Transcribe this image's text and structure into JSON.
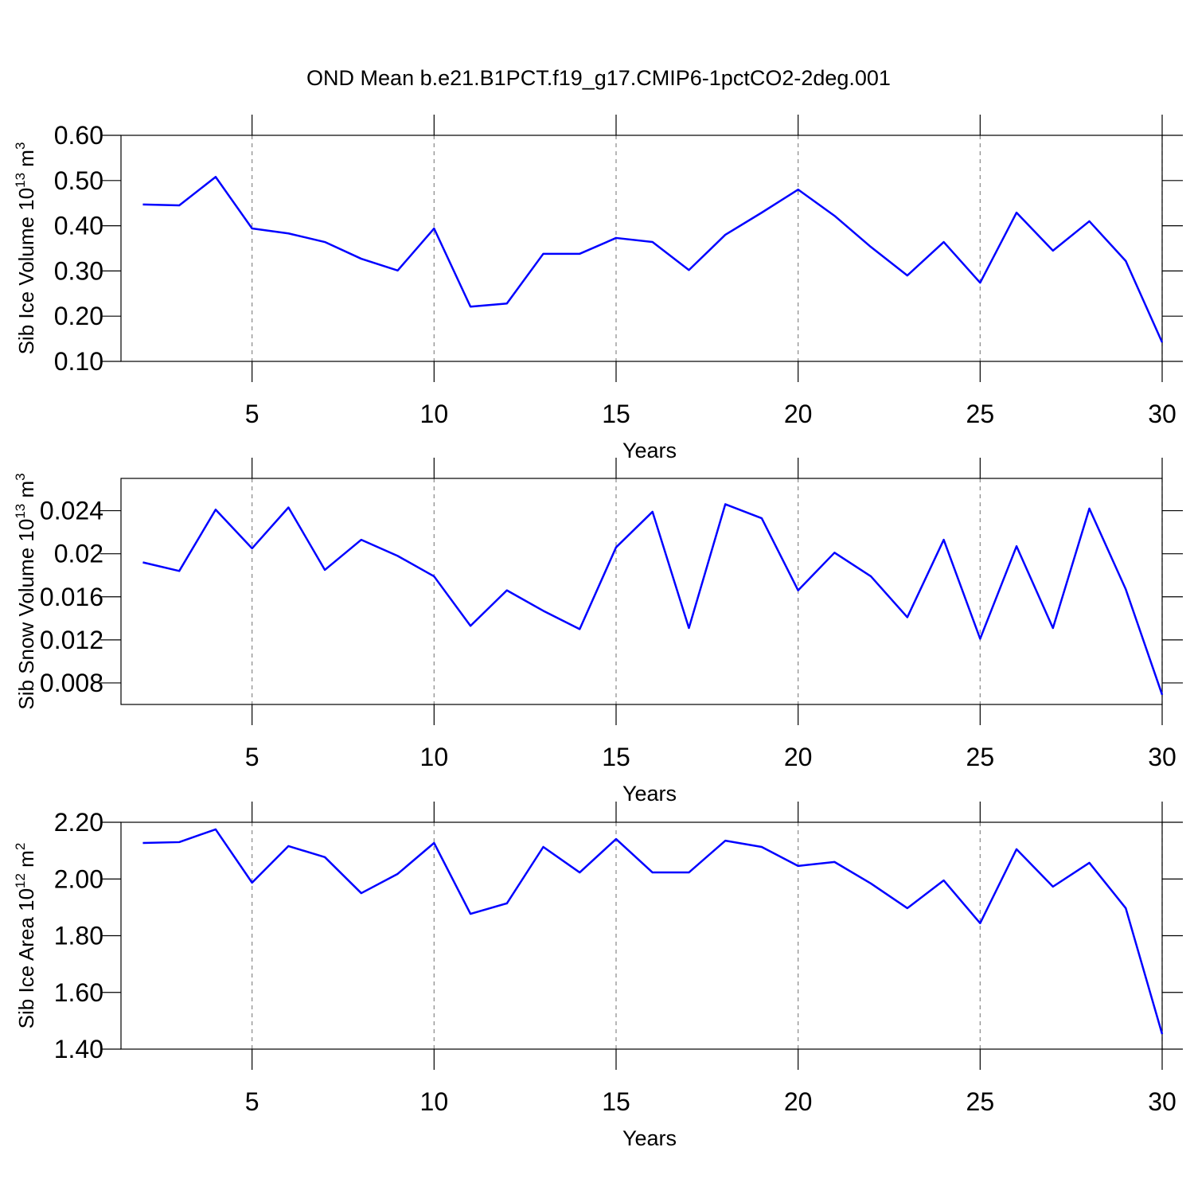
{
  "chart_data": [
    {
      "type": "line",
      "title": "OND Mean b.e21.B1PCT.f19_g17.CMIP6-1pctCO2-2deg.001",
      "xlabel": "Years",
      "ylabel": {
        "text": "Sib Ice Volume 10",
        "exponent": "13",
        "unit": " m",
        "unit_exponent": "3"
      },
      "x": [
        2,
        3,
        4,
        5,
        6,
        7,
        8,
        9,
        10,
        11,
        12,
        13,
        14,
        15,
        16,
        17,
        18,
        19,
        20,
        21,
        22,
        23,
        24,
        25,
        26,
        27,
        28,
        29,
        30
      ],
      "values": [
        0.447,
        0.445,
        0.508,
        0.394,
        0.383,
        0.364,
        0.327,
        0.301,
        0.394,
        0.221,
        0.228,
        0.338,
        0.338,
        0.373,
        0.364,
        0.302,
        0.38,
        0.429,
        0.48,
        0.422,
        0.353,
        0.29,
        0.364,
        0.274,
        0.429,
        0.345,
        0.41,
        0.322,
        0.142
      ],
      "color": "#0000ff",
      "xlim": [
        1.4,
        30
      ],
      "xticks": [
        5,
        10,
        15,
        20,
        25,
        30
      ],
      "ylim": [
        0.1,
        0.6
      ],
      "yticks": [
        {
          "value": 0.1,
          "label": "0.10"
        },
        {
          "value": 0.2,
          "label": "0.20"
        },
        {
          "value": 0.3,
          "label": "0.30"
        },
        {
          "value": 0.4,
          "label": "0.40"
        },
        {
          "value": 0.5,
          "label": "0.50"
        },
        {
          "value": 0.6,
          "label": "0.60"
        }
      ],
      "xgrid": true
    },
    {
      "type": "line",
      "xlabel": "Years",
      "ylabel": {
        "text": "Sib Snow Volume 10",
        "exponent": "13",
        "unit": " m",
        "unit_exponent": "3"
      },
      "x": [
        2,
        3,
        4,
        5,
        6,
        7,
        8,
        9,
        10,
        11,
        12,
        13,
        14,
        15,
        16,
        17,
        18,
        19,
        20,
        21,
        22,
        23,
        24,
        25,
        26,
        27,
        28,
        29,
        30
      ],
      "values": [
        0.0192,
        0.0184,
        0.0241,
        0.0205,
        0.0243,
        0.0185,
        0.0213,
        0.0198,
        0.0179,
        0.0133,
        0.0166,
        0.0147,
        0.013,
        0.0206,
        0.0239,
        0.0131,
        0.0246,
        0.0233,
        0.0166,
        0.0201,
        0.0179,
        0.0141,
        0.0213,
        0.0121,
        0.0207,
        0.0131,
        0.0242,
        0.0167,
        0.0069
      ],
      "color": "#0000ff",
      "xlim": [
        1.4,
        30
      ],
      "xticks": [
        5,
        10,
        15,
        20,
        25,
        30
      ],
      "ylim": [
        0.006,
        0.027
      ],
      "yticks": [
        0.008,
        0.012,
        0.016,
        0.02,
        {
          "value": 0.024,
          "label": "0.024"
        }
      ],
      "xgrid": true
    },
    {
      "type": "line",
      "xlabel": "Years",
      "ylabel": {
        "text": "Sib Ice Area 10",
        "exponent": "12",
        "unit": " m",
        "unit_exponent": "2"
      },
      "x": [
        2,
        3,
        4,
        5,
        6,
        7,
        8,
        9,
        10,
        11,
        12,
        13,
        14,
        15,
        16,
        17,
        18,
        19,
        20,
        21,
        22,
        23,
        24,
        25,
        26,
        27,
        28,
        29,
        30
      ],
      "values": [
        2.127,
        2.13,
        2.175,
        1.987,
        2.116,
        2.077,
        1.95,
        2.018,
        2.127,
        1.877,
        1.914,
        2.113,
        2.023,
        2.141,
        2.023,
        2.023,
        2.135,
        2.113,
        2.046,
        2.06,
        1.984,
        1.897,
        1.995,
        1.844,
        2.105,
        1.973,
        2.057,
        1.897,
        1.453
      ],
      "color": "#0000ff",
      "xlim": [
        1.4,
        30
      ],
      "xticks": [
        5,
        10,
        15,
        20,
        25,
        30
      ],
      "ylim": [
        1.4,
        2.2
      ],
      "yticks": [
        {
          "value": 1.4,
          "label": "1.40"
        },
        {
          "value": 1.6,
          "label": "1.60"
        },
        {
          "value": 1.8,
          "label": "1.80"
        },
        {
          "value": 2.0,
          "label": "2.00"
        },
        {
          "value": 2.2,
          "label": "2.20"
        }
      ],
      "xgrid": true
    }
  ]
}
